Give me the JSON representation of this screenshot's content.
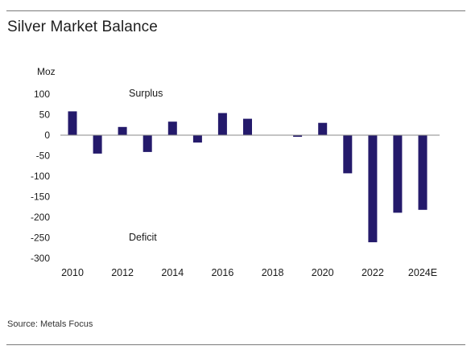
{
  "title": "Silver Market Balance",
  "source": "Source: Metals Focus",
  "chart_data": {
    "type": "bar",
    "title": "Silver Market Balance",
    "ylabel": "Moz",
    "xlabel": "",
    "categories": [
      "2010",
      "2011",
      "2012",
      "2013",
      "2014",
      "2015",
      "2016",
      "2017",
      "2018",
      "2019",
      "2020",
      "2021",
      "2022",
      "2023",
      "2024E"
    ],
    "x_tick_labels": [
      "2010",
      "2012",
      "2014",
      "2016",
      "2018",
      "2020",
      "2022",
      "2024E"
    ],
    "values": [
      58,
      -45,
      20,
      -41,
      33,
      -18,
      54,
      40,
      1,
      -4,
      30,
      -93,
      -261,
      -189,
      -182
    ],
    "ylim": [
      -300,
      100
    ],
    "y_ticks": [
      100,
      50,
      0,
      -50,
      -100,
      -150,
      -200,
      -250,
      -300
    ],
    "annotations": [
      "Surplus",
      "Deficit"
    ],
    "bar_color": "#241a6b",
    "grid": false,
    "legend": "none"
  }
}
